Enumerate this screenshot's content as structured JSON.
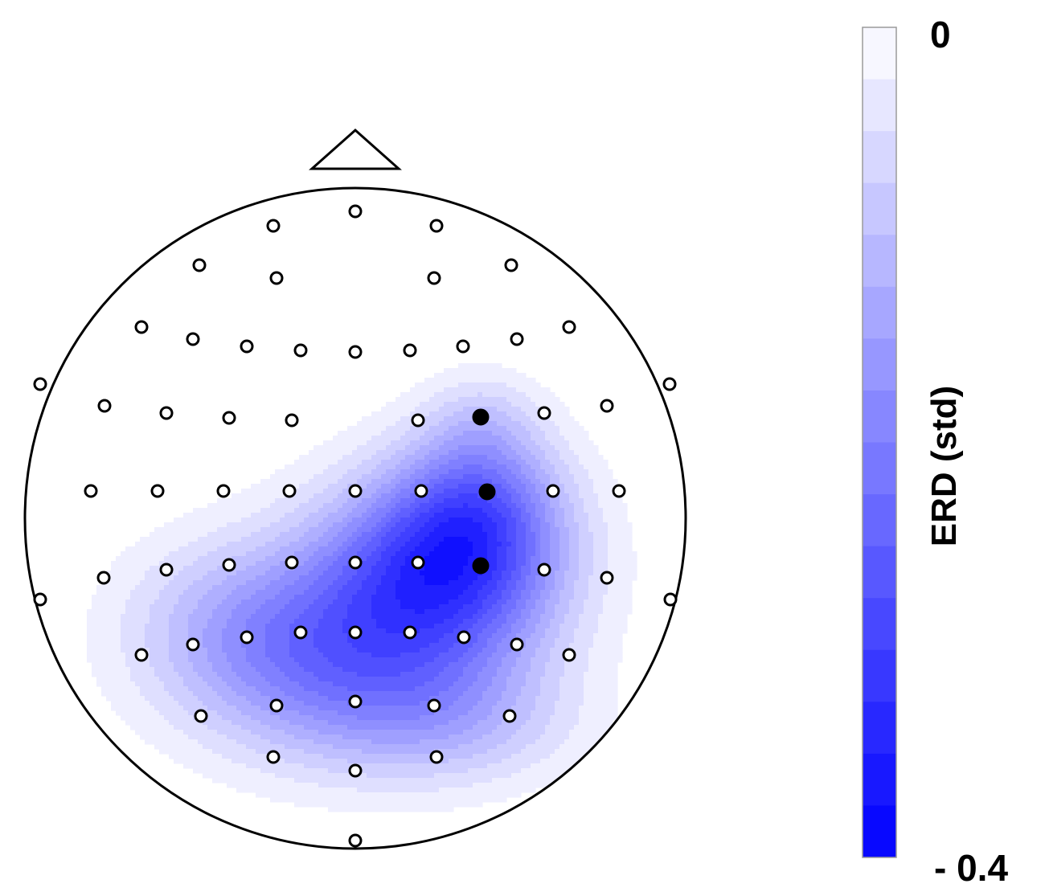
{
  "chart_data": {
    "type": "heatmap",
    "subtype": "scalp-topography",
    "colorbar": {
      "label": "ERD (std)",
      "max_label": "0",
      "min_label": "- 0.4",
      "range": [
        -0.4,
        0
      ],
      "levels": 16,
      "color_high": "#ffffff",
      "color_low": "#0000ff"
    },
    "electrodes_total": 64,
    "highlighted_electrodes": 3,
    "peak_value": -0.4,
    "peak_region": "right central",
    "colors": {
      "outline": "#000000",
      "marker_fill": "#000000",
      "background": "#ffffff"
    }
  }
}
